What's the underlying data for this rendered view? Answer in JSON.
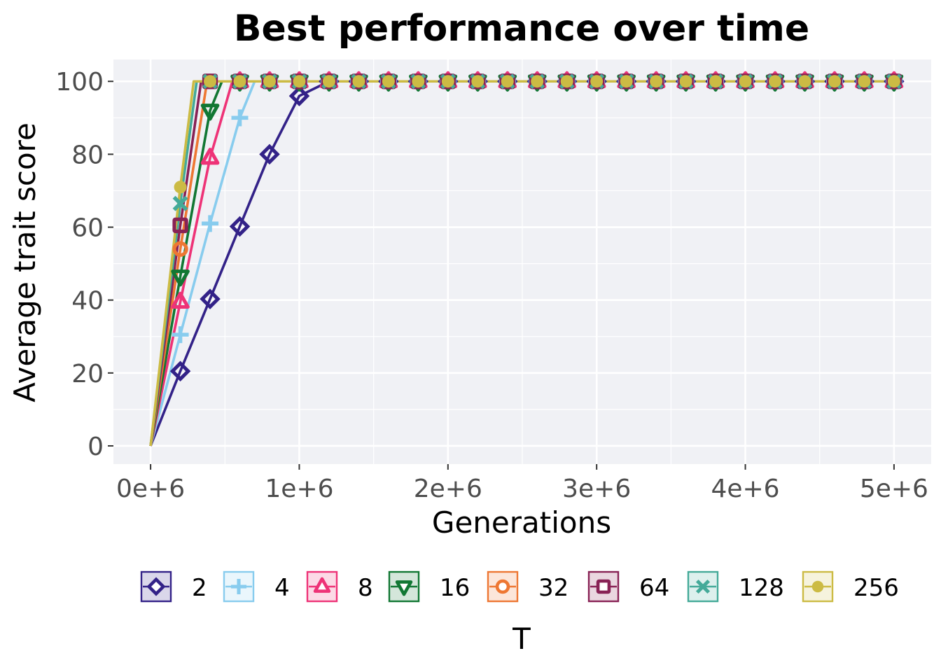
{
  "chart_data": {
    "type": "line",
    "title": "Best performance over time",
    "xlabel": "Generations",
    "ylabel": "Average trait score",
    "xlim": [
      -250000,
      5250000
    ],
    "ylim": [
      -5,
      106
    ],
    "x_ticks": [
      0,
      1000000,
      2000000,
      3000000,
      4000000,
      5000000
    ],
    "x_tick_labels": [
      "0e+6",
      "1e+6",
      "2e+6",
      "3e+6",
      "4e+6",
      "5e+6"
    ],
    "y_ticks": [
      0,
      20,
      40,
      60,
      80,
      100
    ],
    "y_tick_labels": [
      "0",
      "20",
      "40",
      "60",
      "80",
      "100"
    ],
    "grid": true,
    "legend": {
      "title": "T",
      "placement": "bottom"
    },
    "series": [
      {
        "name": "2",
        "color": "#332288",
        "marker": "diamond",
        "points": [
          [
            0,
            0
          ],
          [
            200000,
            20.5
          ],
          [
            400000,
            40.3
          ],
          [
            600000,
            60.2
          ],
          [
            800000,
            80
          ],
          [
            1000000,
            96
          ],
          [
            1200000,
            100
          ],
          [
            1400000,
            100
          ],
          [
            1600000,
            100
          ],
          [
            1800000,
            100
          ],
          [
            2000000,
            100
          ],
          [
            2200000,
            100
          ],
          [
            2400000,
            100
          ],
          [
            2600000,
            100
          ],
          [
            2800000,
            100
          ],
          [
            3000000,
            100
          ],
          [
            3200000,
            100
          ],
          [
            3400000,
            100
          ],
          [
            3600000,
            100
          ],
          [
            3800000,
            100
          ],
          [
            4000000,
            100
          ],
          [
            4200000,
            100
          ],
          [
            4400000,
            100
          ],
          [
            4600000,
            100
          ],
          [
            4800000,
            100
          ],
          [
            5000000,
            100
          ]
        ]
      },
      {
        "name": "4",
        "color": "#88ccee",
        "marker": "plus",
        "points": [
          [
            0,
            0
          ],
          [
            200000,
            30.5
          ],
          [
            400000,
            61
          ],
          [
            600000,
            90
          ],
          [
            700000,
            100
          ],
          [
            800000,
            100
          ],
          [
            1000000,
            100
          ],
          [
            1200000,
            100
          ],
          [
            1400000,
            100
          ],
          [
            1600000,
            100
          ],
          [
            1800000,
            100
          ],
          [
            2000000,
            100
          ],
          [
            2200000,
            100
          ],
          [
            2400000,
            100
          ],
          [
            2600000,
            100
          ],
          [
            2800000,
            100
          ],
          [
            3000000,
            100
          ],
          [
            3200000,
            100
          ],
          [
            3400000,
            100
          ],
          [
            3600000,
            100
          ],
          [
            3800000,
            100
          ],
          [
            4000000,
            100
          ],
          [
            4200000,
            100
          ],
          [
            4400000,
            100
          ],
          [
            4600000,
            100
          ],
          [
            4800000,
            100
          ],
          [
            5000000,
            100
          ]
        ]
      },
      {
        "name": "8",
        "color": "#ee3377",
        "marker": "triangle-up",
        "points": [
          [
            0,
            0
          ],
          [
            200000,
            39.5
          ],
          [
            400000,
            79
          ],
          [
            550000,
            100
          ],
          [
            600000,
            100
          ],
          [
            800000,
            100
          ],
          [
            1000000,
            100
          ],
          [
            1200000,
            100
          ],
          [
            1400000,
            100
          ],
          [
            1600000,
            100
          ],
          [
            1800000,
            100
          ],
          [
            2000000,
            100
          ],
          [
            2200000,
            100
          ],
          [
            2400000,
            100
          ],
          [
            2600000,
            100
          ],
          [
            2800000,
            100
          ],
          [
            3000000,
            100
          ],
          [
            3200000,
            100
          ],
          [
            3400000,
            100
          ],
          [
            3600000,
            100
          ],
          [
            3800000,
            100
          ],
          [
            4000000,
            100
          ],
          [
            4200000,
            100
          ],
          [
            4400000,
            100
          ],
          [
            4600000,
            100
          ],
          [
            4800000,
            100
          ],
          [
            5000000,
            100
          ]
        ]
      },
      {
        "name": "16",
        "color": "#117733",
        "marker": "triangle-down",
        "points": [
          [
            0,
            0
          ],
          [
            200000,
            46.5
          ],
          [
            400000,
            92
          ],
          [
            480000,
            100
          ],
          [
            600000,
            100
          ],
          [
            800000,
            100
          ],
          [
            1000000,
            100
          ],
          [
            1200000,
            100
          ],
          [
            1400000,
            100
          ],
          [
            1600000,
            100
          ],
          [
            1800000,
            100
          ],
          [
            2000000,
            100
          ],
          [
            2200000,
            100
          ],
          [
            2400000,
            100
          ],
          [
            2600000,
            100
          ],
          [
            2800000,
            100
          ],
          [
            3000000,
            100
          ],
          [
            3200000,
            100
          ],
          [
            3400000,
            100
          ],
          [
            3600000,
            100
          ],
          [
            3800000,
            100
          ],
          [
            4000000,
            100
          ],
          [
            4200000,
            100
          ],
          [
            4400000,
            100
          ],
          [
            4600000,
            100
          ],
          [
            4800000,
            100
          ],
          [
            5000000,
            100
          ]
        ]
      },
      {
        "name": "32",
        "color": "#ee7733",
        "marker": "circle-open",
        "points": [
          [
            0,
            0
          ],
          [
            200000,
            54
          ],
          [
            380000,
            100
          ],
          [
            400000,
            100
          ],
          [
            600000,
            100
          ],
          [
            800000,
            100
          ],
          [
            1000000,
            100
          ],
          [
            1200000,
            100
          ],
          [
            1400000,
            100
          ],
          [
            1600000,
            100
          ],
          [
            1800000,
            100
          ],
          [
            2000000,
            100
          ],
          [
            2200000,
            100
          ],
          [
            2400000,
            100
          ],
          [
            2600000,
            100
          ],
          [
            2800000,
            100
          ],
          [
            3000000,
            100
          ],
          [
            3200000,
            100
          ],
          [
            3400000,
            100
          ],
          [
            3600000,
            100
          ],
          [
            3800000,
            100
          ],
          [
            4000000,
            100
          ],
          [
            4200000,
            100
          ],
          [
            4400000,
            100
          ],
          [
            4600000,
            100
          ],
          [
            4800000,
            100
          ],
          [
            5000000,
            100
          ]
        ]
      },
      {
        "name": "64",
        "color": "#882255",
        "marker": "square",
        "points": [
          [
            0,
            0
          ],
          [
            200000,
            60.5
          ],
          [
            340000,
            100
          ],
          [
            400000,
            100
          ],
          [
            600000,
            100
          ],
          [
            800000,
            100
          ],
          [
            1000000,
            100
          ],
          [
            1200000,
            100
          ],
          [
            1400000,
            100
          ],
          [
            1600000,
            100
          ],
          [
            1800000,
            100
          ],
          [
            2000000,
            100
          ],
          [
            2200000,
            100
          ],
          [
            2400000,
            100
          ],
          [
            2600000,
            100
          ],
          [
            2800000,
            100
          ],
          [
            3000000,
            100
          ],
          [
            3200000,
            100
          ],
          [
            3400000,
            100
          ],
          [
            3600000,
            100
          ],
          [
            3800000,
            100
          ],
          [
            4000000,
            100
          ],
          [
            4200000,
            100
          ],
          [
            4400000,
            100
          ],
          [
            4600000,
            100
          ],
          [
            4800000,
            100
          ],
          [
            5000000,
            100
          ]
        ]
      },
      {
        "name": "128",
        "color": "#44aa99",
        "marker": "cross",
        "points": [
          [
            0,
            0
          ],
          [
            200000,
            66.5
          ],
          [
            310000,
            100
          ],
          [
            400000,
            100
          ],
          [
            600000,
            100
          ],
          [
            800000,
            100
          ],
          [
            1000000,
            100
          ],
          [
            1200000,
            100
          ],
          [
            1400000,
            100
          ],
          [
            1600000,
            100
          ],
          [
            1800000,
            100
          ],
          [
            2000000,
            100
          ],
          [
            2200000,
            100
          ],
          [
            2400000,
            100
          ],
          [
            2600000,
            100
          ],
          [
            2800000,
            100
          ],
          [
            3000000,
            100
          ],
          [
            3200000,
            100
          ],
          [
            3400000,
            100
          ],
          [
            3600000,
            100
          ],
          [
            3800000,
            100
          ],
          [
            4000000,
            100
          ],
          [
            4200000,
            100
          ],
          [
            4400000,
            100
          ],
          [
            4600000,
            100
          ],
          [
            4800000,
            100
          ],
          [
            5000000,
            100
          ]
        ]
      },
      {
        "name": "256",
        "color": "#ccbb44",
        "marker": "circle",
        "points": [
          [
            0,
            0
          ],
          [
            200000,
            71
          ],
          [
            290000,
            100
          ],
          [
            400000,
            100
          ],
          [
            600000,
            100
          ],
          [
            800000,
            100
          ],
          [
            1000000,
            100
          ],
          [
            1200000,
            100
          ],
          [
            1400000,
            100
          ],
          [
            1600000,
            100
          ],
          [
            1800000,
            100
          ],
          [
            2000000,
            100
          ],
          [
            2200000,
            100
          ],
          [
            2400000,
            100
          ],
          [
            2600000,
            100
          ],
          [
            2800000,
            100
          ],
          [
            3000000,
            100
          ],
          [
            3200000,
            100
          ],
          [
            3400000,
            100
          ],
          [
            3600000,
            100
          ],
          [
            3800000,
            100
          ],
          [
            4000000,
            100
          ],
          [
            4200000,
            100
          ],
          [
            4400000,
            100
          ],
          [
            4600000,
            100
          ],
          [
            4800000,
            100
          ],
          [
            5000000,
            100
          ]
        ]
      }
    ]
  }
}
